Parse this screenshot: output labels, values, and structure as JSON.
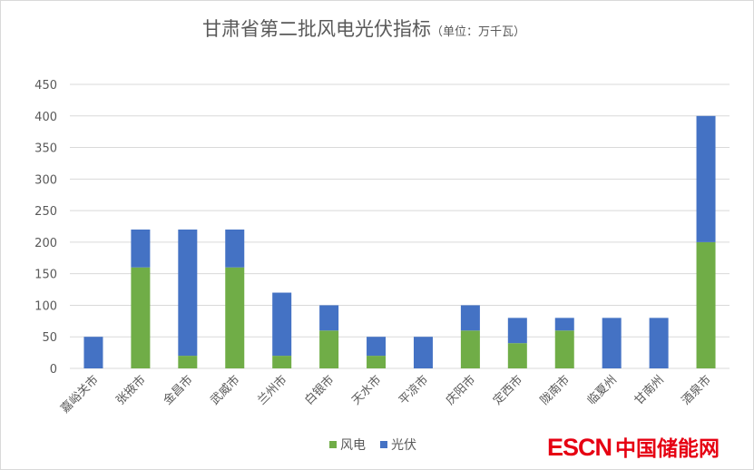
{
  "chart_data": {
    "type": "bar",
    "stacked": true,
    "title": "甘肃省第二批风电光伏指标",
    "unit_note": "（单位：万千瓦）",
    "categories": [
      "嘉峪关市",
      "张掖市",
      "金昌市",
      "武威市",
      "兰州市",
      "白银市",
      "天水市",
      "平凉市",
      "庆阳市",
      "定西市",
      "陇南市",
      "临夏州",
      "甘南州",
      "酒泉市"
    ],
    "series": [
      {
        "name": "风电",
        "color": "#70ad47",
        "values": [
          0,
          160,
          20,
          160,
          20,
          60,
          20,
          0,
          60,
          40,
          60,
          0,
          0,
          200
        ]
      },
      {
        "name": "光伏",
        "color": "#4472c4",
        "values": [
          50,
          60,
          200,
          60,
          100,
          40,
          30,
          50,
          40,
          40,
          20,
          80,
          80,
          200
        ]
      }
    ],
    "yticks": [
      0,
      50,
      100,
      150,
      200,
      250,
      300,
      350,
      400,
      450
    ],
    "ylim": [
      0,
      450
    ],
    "grid": true,
    "legend": "bottom"
  },
  "watermark": {
    "latin": "ESCN",
    "chinese": "中国储能网"
  }
}
